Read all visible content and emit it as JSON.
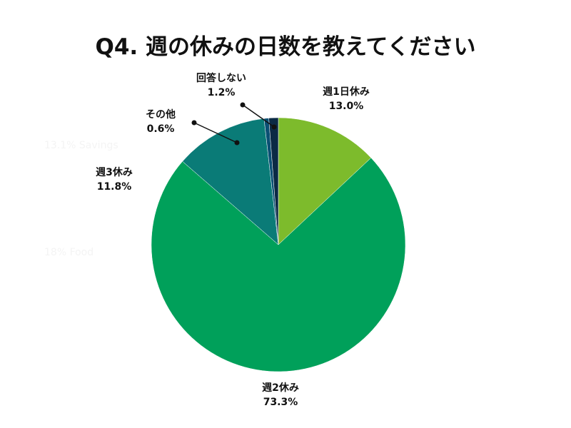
{
  "chart_data": {
    "type": "pie",
    "title": "Q4. 週の休みの日数を教えてください",
    "categories": [
      "週1日休み",
      "週2休み",
      "週3休み",
      "その他",
      "回答しない"
    ],
    "values": [
      13.0,
      73.3,
      11.8,
      0.6,
      1.2
    ],
    "value_labels": [
      "13.0%",
      "73.3%",
      "11.8%",
      "0.6%",
      "1.2%"
    ],
    "colors": [
      "#7dbb2c",
      "#00a05a",
      "#0a7b77",
      "#0a4f73",
      "#0b2a45"
    ],
    "start_angle_deg": 0,
    "direction": "clockwise",
    "legend": "none"
  },
  "background_text": [
    "13.1% Savings",
    "18% Food"
  ]
}
